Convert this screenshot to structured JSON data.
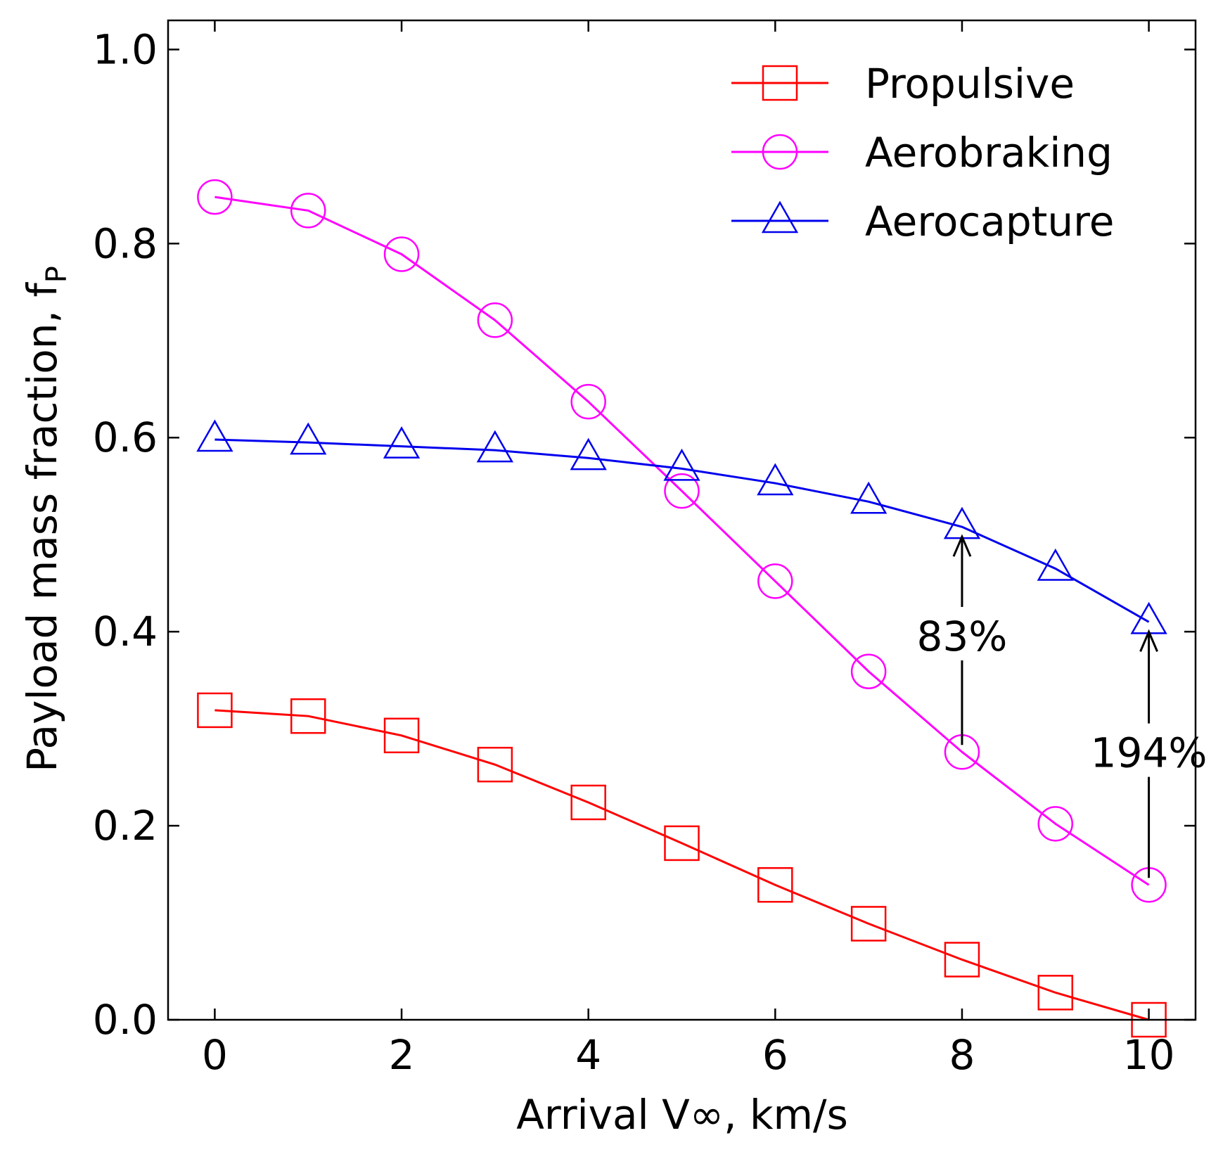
{
  "chart_data": {
    "type": "line",
    "title": "",
    "xlabel": "Arrival V∞, km/s",
    "ylabel": "Payload mass fraction, f",
    "ylabel_subscript": "P",
    "xlim": [
      -0.5,
      10.5
    ],
    "ylim": [
      0.0,
      1.03
    ],
    "xticks": [
      0,
      2,
      4,
      6,
      8,
      10
    ],
    "xtick_labels": [
      "0",
      "2",
      "4",
      "6",
      "8",
      "10"
    ],
    "yticks": [
      0.0,
      0.2,
      0.4,
      0.6,
      0.8,
      1.0
    ],
    "ytick_labels": [
      "0.0",
      "0.2",
      "0.4",
      "0.6",
      "0.8",
      "1.0"
    ],
    "grid": false,
    "legend_position": "top-right",
    "x": [
      0,
      1,
      2,
      3,
      4,
      5,
      6,
      7,
      8,
      9,
      10
    ],
    "series": [
      {
        "name": "Propulsive",
        "marker": "square",
        "color": "#ff0000",
        "values": [
          0.319,
          0.313,
          0.293,
          0.263,
          0.224,
          0.182,
          0.139,
          0.099,
          0.062,
          0.028,
          0.0
        ]
      },
      {
        "name": "Aerobraking",
        "marker": "circle",
        "color": "#ff00ff",
        "values": [
          0.848,
          0.834,
          0.789,
          0.721,
          0.637,
          0.545,
          0.452,
          0.359,
          0.276,
          0.202,
          0.139
        ]
      },
      {
        "name": "Aerocapture",
        "marker": "triangle",
        "color": "#0000ee",
        "values": [
          0.598,
          0.595,
          0.591,
          0.587,
          0.579,
          0.568,
          0.553,
          0.534,
          0.508,
          0.465,
          0.41
        ]
      }
    ],
    "annotations": [
      {
        "text": "83%",
        "x": 8,
        "y_from": 0.276,
        "y_to": 0.508,
        "label_y": 0.395
      },
      {
        "text": "194%",
        "x": 10,
        "y_from": 0.139,
        "y_to": 0.41,
        "label_y": 0.275
      }
    ]
  }
}
